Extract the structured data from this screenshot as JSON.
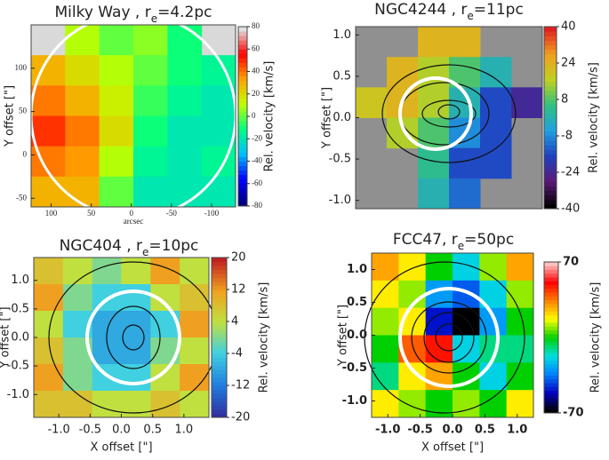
{
  "chart_data": [
    {
      "type": "heatmap",
      "title": "Milky Way , r",
      "title_sub": "e",
      "title_end": "=4.2pc",
      "xlabel": "arcsec",
      "ylabel": "Y offset [\"]",
      "colorbar_label": "Rel. velocity [km/s]",
      "xlim": [
        125,
        -130
      ],
      "ylim": [
        -60,
        150
      ],
      "xticks": [
        100,
        50,
        0,
        -50,
        -100
      ],
      "yticks": [
        -50,
        0,
        50,
        100
      ],
      "clim": [
        -80,
        80
      ],
      "cticks": [
        80,
        60,
        40,
        20,
        0,
        -20,
        -40,
        -60,
        -80
      ],
      "nan_color": "#d9d9d9",
      "colormap": [
        "#000080",
        "#0000ff",
        "#00c0ff",
        "#00ff80",
        "#c0ff00",
        "#ffa000",
        "#ff0000",
        "#e0e0e0"
      ],
      "z": [
        [
          null,
          10,
          0,
          5,
          -10,
          null
        ],
        [
          30,
          20,
          10,
          0,
          -10,
          -15
        ],
        [
          40,
          30,
          15,
          -5,
          -15,
          -20
        ],
        [
          50,
          40,
          20,
          -10,
          -20,
          -20
        ],
        [
          40,
          35,
          10,
          -15,
          -20,
          -15
        ],
        [
          30,
          30,
          0,
          -20,
          -20,
          -20
        ]
      ]
    },
    {
      "type": "heatmap",
      "title": "NGC4244 , r",
      "title_sub": "e",
      "title_end": "=11pc",
      "ylabel": "Y offset [\"]",
      "colorbar_label": "Rel. velocity [km/s]",
      "ylim": [
        -1.1,
        1.1
      ],
      "yticks": [
        {
          "value": 1.0,
          "label": "1.0"
        },
        0.5,
        {
          "value": 0.0,
          "label": "0.0"
        },
        -0.5,
        {
          "value": -1.0,
          "label": "-1.0"
        }
      ],
      "clim": [
        -40,
        40
      ],
      "cticks": [
        40,
        24,
        8,
        -8,
        -24,
        -40
      ],
      "nan_color": "#909090",
      "colormap": [
        "#000000",
        "#5a1a78",
        "#2040c0",
        "#20a0e0",
        "#30c080",
        "#c0d020",
        "#f0a020",
        "#e02020"
      ],
      "z": [
        [
          null,
          null,
          24,
          24,
          null,
          null
        ],
        [
          null,
          24,
          16,
          8,
          0,
          null
        ],
        [
          20,
          24,
          16,
          0,
          -16,
          -24
        ],
        [
          null,
          16,
          8,
          -8,
          -16,
          null
        ],
        [
          null,
          null,
          4,
          -16,
          -16,
          null
        ],
        [
          null,
          null,
          0,
          -12,
          null,
          null
        ]
      ]
    },
    {
      "type": "heatmap",
      "title": "NGC404 , r",
      "title_sub": "e",
      "title_end": "=10pc",
      "xlabel": "X offset [\"]",
      "ylabel": "Y offset [\"]",
      "colorbar_label": "Rel. velocity [km/s]",
      "xlim": [
        -1.4,
        1.4
      ],
      "ylim": [
        -1.4,
        1.4
      ],
      "xticks": [
        {
          "value": -1.0,
          "label": "-1.0"
        },
        -0.5,
        {
          "value": 0.0,
          "label": "0.0"
        },
        0.5,
        {
          "value": 1.0,
          "label": "1.0"
        }
      ],
      "yticks": [
        {
          "value": 1.0,
          "label": "1.0"
        },
        0.5,
        {
          "value": 0.0,
          "label": "0.0"
        },
        -0.5,
        {
          "value": -1.0,
          "label": "-1.0"
        }
      ],
      "clim": [
        -20,
        20
      ],
      "cticks": [
        20,
        12,
        4,
        -4,
        -12,
        -20
      ],
      "nan_color": "#cccccc",
      "colormap": [
        "#3030a0",
        "#2080e0",
        "#40d0e0",
        "#c0e040",
        "#f0a020",
        "#c02020"
      ],
      "z": [
        [
          8,
          4,
          0,
          4,
          12,
          4
        ],
        [
          12,
          0,
          -4,
          -4,
          4,
          8
        ],
        [
          4,
          -4,
          -8,
          -8,
          -4,
          12
        ],
        [
          8,
          0,
          -8,
          -8,
          0,
          4
        ],
        [
          12,
          0,
          -4,
          -4,
          4,
          12
        ],
        [
          8,
          8,
          4,
          4,
          8,
          4
        ]
      ]
    },
    {
      "type": "heatmap",
      "title": "FCC47, r",
      "title_sub": "e",
      "title_end": "=50pc",
      "xlabel": "X offset [\"]",
      "ylabel": "Y offset [\"]",
      "colorbar_label": "Rel. velocity [km/s]",
      "xlim": [
        -1.25,
        1.25
      ],
      "ylim": [
        -1.25,
        1.25
      ],
      "xticks": [
        {
          "value": -1.0,
          "label": "-1.0"
        },
        -0.5,
        {
          "value": 0.0,
          "label": "0.0"
        },
        0.5,
        {
          "value": 1.0,
          "label": "1.0"
        }
      ],
      "yticks": [
        {
          "value": 1.0,
          "label": "1.0"
        },
        0.5,
        {
          "value": 0.0,
          "label": "0.0"
        },
        -0.5,
        {
          "value": -1.0,
          "label": "-1.0"
        }
      ],
      "clim": [
        -70,
        70
      ],
      "cticks": [
        70,
        -70
      ],
      "nan_color": "#ffffff",
      "colormap": [
        "#000000",
        "#0000c0",
        "#0080ff",
        "#00e0e0",
        "#00d000",
        "#ffff00",
        "#ff8000",
        "#ff0000",
        "#ffc0c0"
      ],
      "z": [
        [
          30,
          20,
          0,
          -20,
          10,
          30
        ],
        [
          20,
          10,
          -30,
          -40,
          -20,
          10
        ],
        [
          10,
          20,
          -50,
          -70,
          -30,
          0
        ],
        [
          0,
          40,
          50,
          -20,
          -10,
          -10
        ],
        [
          -10,
          20,
          30,
          0,
          -20,
          0
        ],
        [
          20,
          10,
          0,
          10,
          0,
          20
        ]
      ]
    }
  ]
}
